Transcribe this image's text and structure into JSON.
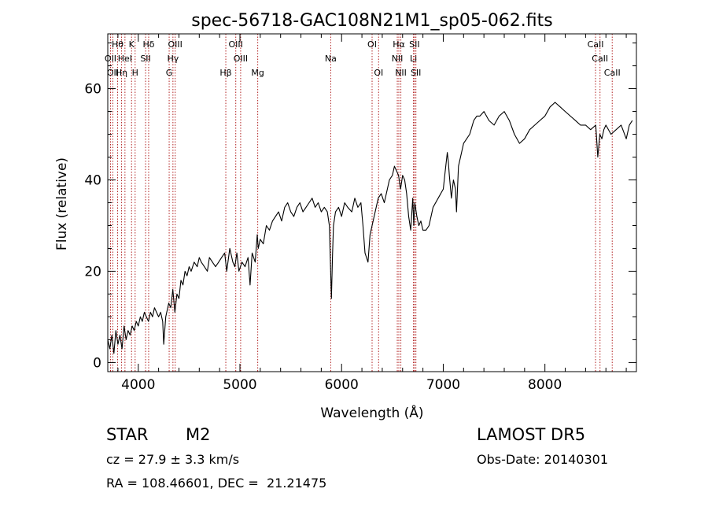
{
  "chart_data": {
    "type": "line",
    "title": "spec-56718-GAC108N21M1_sp05-062.fits",
    "xlabel": "Wavelength (Å)",
    "ylabel": "Flux (relative)",
    "xlim": [
      3700,
      8900
    ],
    "ylim": [
      -2,
      72
    ],
    "xticks": [
      4000,
      5000,
      6000,
      7000,
      8000
    ],
    "yticks": [
      0,
      20,
      40,
      60
    ],
    "grid": false,
    "series": [
      {
        "x": [
          3700,
          3720,
          3740,
          3760,
          3780,
          3800,
          3820,
          3840,
          3860,
          3880,
          3900,
          3920,
          3940,
          3960,
          3980,
          4000,
          4020,
          4040,
          4060,
          4080,
          4100,
          4120,
          4140,
          4160,
          4180,
          4200,
          4220,
          4240,
          4250,
          4270,
          4300,
          4320,
          4340,
          4360,
          4380,
          4400,
          4420,
          4440,
          4460,
          4480,
          4500,
          4520,
          4550,
          4580,
          4600,
          4620,
          4650,
          4680,
          4700,
          4730,
          4760,
          4790,
          4820,
          4850,
          4870,
          4900,
          4930,
          4950,
          4970,
          4990,
          5020,
          5050,
          5080,
          5100,
          5120,
          5150,
          5170,
          5180,
          5200,
          5230,
          5260,
          5290,
          5320,
          5350,
          5380,
          5410,
          5440,
          5470,
          5500,
          5530,
          5560,
          5590,
          5620,
          5650,
          5680,
          5710,
          5740,
          5770,
          5800,
          5830,
          5860,
          5880,
          5900,
          5910,
          5920,
          5940,
          5970,
          6000,
          6030,
          6060,
          6100,
          6130,
          6160,
          6190,
          6210,
          6230,
          6260,
          6280,
          6300,
          6330,
          6360,
          6390,
          6420,
          6450,
          6470,
          6500,
          6520,
          6540,
          6560,
          6580,
          6600,
          6620,
          6640,
          6660,
          6680,
          6700,
          6710,
          6720,
          6740,
          6760,
          6780,
          6800,
          6830,
          6860,
          6900,
          6950,
          7000,
          7020,
          7040,
          7050,
          7060,
          7080,
          7100,
          7120,
          7130,
          7150,
          7180,
          7200,
          7230,
          7260,
          7300,
          7330,
          7360,
          7400,
          7450,
          7500,
          7550,
          7600,
          7650,
          7700,
          7750,
          7800,
          7850,
          7900,
          7950,
          8000,
          8050,
          8100,
          8150,
          8200,
          8250,
          8300,
          8350,
          8400,
          8450,
          8500,
          8520,
          8540,
          8560,
          8580,
          8600,
          8650,
          8700,
          8750,
          8800,
          8830,
          8860
        ],
        "y": [
          5,
          3,
          6,
          2,
          7,
          4,
          6,
          3,
          8,
          5,
          7,
          6,
          8,
          7,
          9,
          8,
          10,
          9,
          11,
          10,
          9,
          11,
          10,
          12,
          11,
          10,
          11,
          9,
          4,
          10,
          13,
          12,
          16,
          11,
          15,
          14,
          18,
          17,
          20,
          19,
          21,
          20,
          22,
          21,
          23,
          22,
          21,
          20,
          23,
          22,
          21,
          22,
          23,
          24,
          20,
          25,
          22,
          21,
          24,
          20,
          22,
          21,
          23,
          17,
          24,
          22,
          28,
          25,
          27,
          26,
          30,
          29,
          31,
          32,
          33,
          31,
          34,
          35,
          33,
          32,
          34,
          35,
          33,
          34,
          35,
          36,
          34,
          35,
          33,
          34,
          33,
          30,
          14,
          23,
          30,
          33,
          34,
          32,
          35,
          34,
          33,
          36,
          34,
          35,
          30,
          24,
          22,
          28,
          30,
          33,
          36,
          37,
          35,
          38,
          40,
          41,
          43,
          42,
          41,
          38,
          41,
          40,
          37,
          32,
          29,
          36,
          30,
          35,
          32,
          30,
          31,
          29,
          29,
          30,
          34,
          36,
          38,
          42,
          46,
          44,
          41,
          36,
          40,
          38,
          33,
          43,
          46,
          48,
          49,
          50,
          53,
          54,
          54,
          55,
          53,
          52,
          54,
          55,
          53,
          50,
          48,
          49,
          51,
          52,
          53,
          54,
          56,
          57,
          56,
          55,
          54,
          53,
          52,
          52,
          51,
          52,
          45,
          50,
          49,
          51,
          52,
          50,
          51,
          52,
          49,
          52,
          53
        ]
      }
    ],
    "lines": [
      {
        "x": 3727,
        "labels": [
          "OII"
        ]
      },
      {
        "x": 3750,
        "labels": [
          "OII"
        ]
      },
      {
        "x": 3797,
        "labels": [
          "Hθ"
        ]
      },
      {
        "x": 3835,
        "labels": [
          "Hη"
        ]
      },
      {
        "x": 3869,
        "labels": [
          "HeI"
        ]
      },
      {
        "x": 3934,
        "labels": [
          "K"
        ]
      },
      {
        "x": 3969,
        "labels": [
          "H"
        ]
      },
      {
        "x": 4072,
        "labels": [
          "SII"
        ]
      },
      {
        "x": 4102,
        "labels": [
          "Hδ"
        ]
      },
      {
        "x": 4304,
        "labels": [
          "G"
        ]
      },
      {
        "x": 4341,
        "labels": [
          "Hγ"
        ]
      },
      {
        "x": 4363,
        "labels": [
          "OIII"
        ]
      },
      {
        "x": 4861,
        "labels": [
          "Hβ"
        ]
      },
      {
        "x": 4959,
        "labels": [
          "OIII"
        ]
      },
      {
        "x": 5007,
        "labels": [
          "OIII"
        ]
      },
      {
        "x": 5175,
        "labels": [
          "Mg"
        ]
      },
      {
        "x": 5893,
        "labels": [
          "Na"
        ]
      },
      {
        "x": 6300,
        "labels": [
          "OI"
        ]
      },
      {
        "x": 6364,
        "labels": [
          "OI"
        ]
      },
      {
        "x": 6548,
        "labels": [
          "NII"
        ]
      },
      {
        "x": 6563,
        "labels": [
          "Hα"
        ]
      },
      {
        "x": 6583,
        "labels": [
          "NII"
        ]
      },
      {
        "x": 6707,
        "labels": [
          "Li"
        ]
      },
      {
        "x": 6717,
        "labels": [
          "SII"
        ]
      },
      {
        "x": 6731,
        "labels": [
          "SII"
        ]
      },
      {
        "x": 8498,
        "labels": [
          "CaII"
        ]
      },
      {
        "x": 8542,
        "labels": [
          "CaII"
        ]
      },
      {
        "x": 8662,
        "labels": [
          "CaII"
        ]
      }
    ],
    "line_label_positions": [
      {
        "text": "Hθ",
        "x": 3797
      },
      {
        "text": "K",
        "x": 3934
      },
      {
        "text": "Hδ",
        "x": 4102
      },
      {
        "text": "OIII",
        "x": 4363
      },
      {
        "text": "OIII",
        "x": 4959
      },
      {
        "text": "OI",
        "x": 6300
      },
      {
        "text": "Hα",
        "x": 6563
      },
      {
        "text": "SII",
        "x": 6717
      },
      {
        "text": "CaII",
        "x": 8498
      },
      {
        "text": "OII",
        "x": 3727
      },
      {
        "text": "HeI",
        "x": 3869
      },
      {
        "text": "SII",
        "x": 4072
      },
      {
        "text": "Hγ",
        "x": 4341
      },
      {
        "text": "OIII",
        "x": 5007
      },
      {
        "text": "Na",
        "x": 5893
      },
      {
        "text": "NII",
        "x": 6548
      },
      {
        "text": "Li",
        "x": 6707
      },
      {
        "text": "CaII",
        "x": 8542
      },
      {
        "text": "OII",
        "x": 3750
      },
      {
        "text": "Hη",
        "x": 3835
      },
      {
        "text": "H",
        "x": 3969
      },
      {
        "text": "G",
        "x": 4304
      },
      {
        "text": "Hβ",
        "x": 4861
      },
      {
        "text": "Mg",
        "x": 5175
      },
      {
        "text": "OI",
        "x": 6364
      },
      {
        "text": "NII",
        "x": 6583
      },
      {
        "text": "SII",
        "x": 6731
      },
      {
        "text": "CaII",
        "x": 8662
      }
    ]
  },
  "info": {
    "class": "STAR",
    "subclass": "M2",
    "survey": "LAMOST DR5",
    "cz": "cz = 27.9 ± 3.3 km/s",
    "obs_date": "Obs-Date: 20140301",
    "coords": "RA = 108.46601, DEC =  21.21475"
  },
  "colors": {
    "line_marker": "#b22222",
    "spectrum": "#000000"
  }
}
